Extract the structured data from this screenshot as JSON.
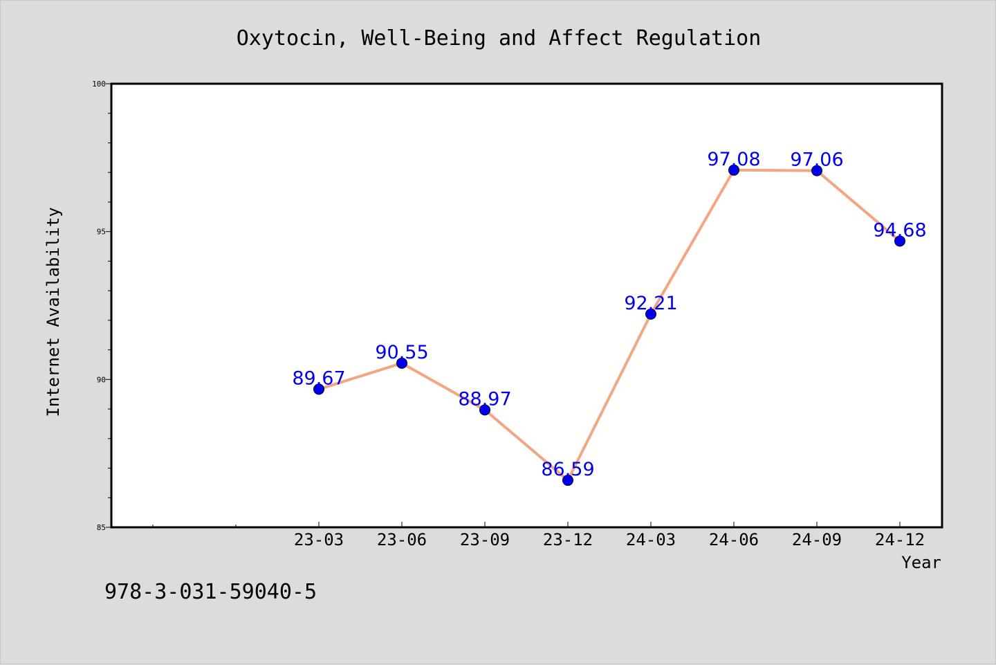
{
  "chart_data": {
    "type": "line",
    "title": "Oxytocin, Well-Being and Affect Regulation",
    "xlabel": "Year",
    "ylabel": "Internet Availability",
    "categories": [
      "23-03",
      "23-06",
      "23-09",
      "23-12",
      "24-03",
      "24-06",
      "24-09",
      "24-12"
    ],
    "series": [
      {
        "values": [
          89.67,
          90.55,
          88.97,
          86.59,
          92.21,
          97.08,
          97.06,
          94.68
        ]
      }
    ],
    "data_labels": [
      "89.67",
      "90.55",
      "88.97",
      "86.59",
      "92.21",
      "97.08",
      "97.06",
      "94.68"
    ],
    "ylim": [
      85,
      100
    ],
    "yticks": [
      85,
      90,
      95,
      100
    ],
    "ytick_labels": [
      "85",
      "90",
      "95",
      "100"
    ],
    "grid": false,
    "legend": "none",
    "colors": {
      "line": "#f4a582",
      "marker": "#0000ee",
      "label": "#0000ee",
      "background": "#dcdcdc",
      "plot_background": "#ffffff"
    }
  },
  "footer": {
    "code": "978-3-031-59040-5"
  }
}
